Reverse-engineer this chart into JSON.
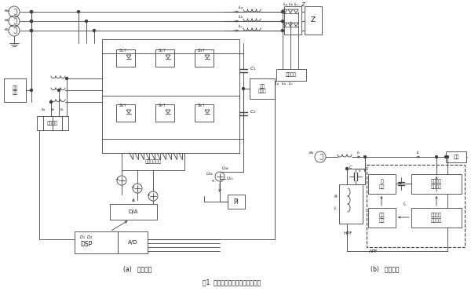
{
  "title": "图1  并联型有源电力滤波器的原理",
  "subtitle_a": "(a)   系统框图",
  "subtitle_b": "(b)   信号流程",
  "line_color": "#404040",
  "text_color": "#1a1a1a"
}
